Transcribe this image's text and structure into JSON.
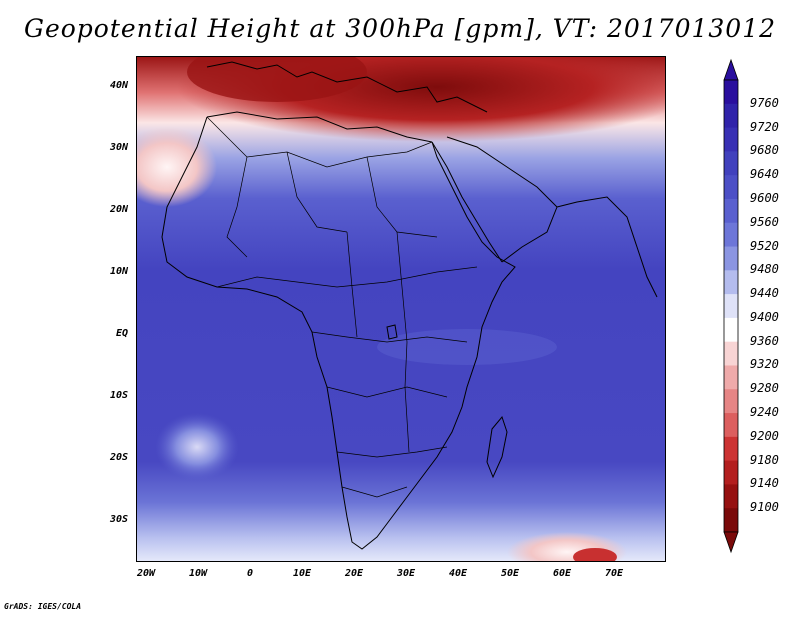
{
  "title": "Geopotential Height at 300hPa [gpm], VT: 2017013012",
  "footer": "GrADS: IGES/COLA",
  "map": {
    "lat_labels": [
      "40N",
      "30N",
      "20N",
      "10N",
      "EQ",
      "10S",
      "20S",
      "30S"
    ],
    "lon_labels": [
      "20W",
      "10W",
      "0",
      "10E",
      "20E",
      "30E",
      "40E",
      "50E",
      "60E",
      "70E"
    ]
  },
  "colorbar": {
    "labels": [
      "9760",
      "9720",
      "9680",
      "9640",
      "9600",
      "9560",
      "9520",
      "9480",
      "9440",
      "9400",
      "9360",
      "9320",
      "9280",
      "9240",
      "9200",
      "9180",
      "9140",
      "9100"
    ],
    "colors": [
      "#2a0f9e",
      "#3023aa",
      "#3830b4",
      "#4141bd",
      "#4c4fc6",
      "#5a60cf",
      "#6d76d8",
      "#8b95e2",
      "#b4bcee",
      "#dfe2f8",
      "#ffffff",
      "#f8d4d4",
      "#efaaaa",
      "#e68585",
      "#dc5f5f",
      "#cc3333",
      "#b31f1f",
      "#961111",
      "#7a0a0a"
    ]
  }
}
